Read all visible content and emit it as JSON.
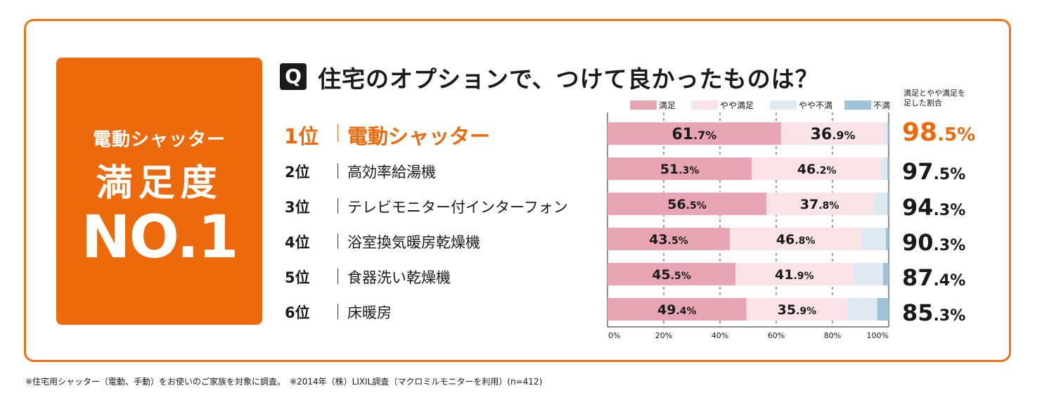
{
  "badge": {
    "subtitle": "電動シャッター",
    "main": "満足度",
    "no": "NO.1"
  },
  "question": {
    "icon": "Q",
    "text": "住宅のオプションで、つけて良かったものは？"
  },
  "legend": [
    {
      "label": "満足",
      "color": "#e8a5b4"
    },
    {
      "label": "やや満足",
      "color": "#f9e3e7"
    },
    {
      "label": "やや不満",
      "color": "#dfe9f2"
    },
    {
      "label": "不満",
      "color": "#9fc3d8"
    }
  ],
  "ratio_header": {
    "line1": "満足とやや満足を",
    "line2": "足した割合"
  },
  "rows": [
    {
      "rank": "1位",
      "item": "電動シャッター",
      "total_int": "98",
      "total_dec": ".5%"
    },
    {
      "rank": "2位",
      "item": "高効率給湯機",
      "total_int": "97",
      "total_dec": ".5%"
    },
    {
      "rank": "3位",
      "item": "テレビモニター付インターフォン",
      "total_int": "94",
      "total_dec": ".3%"
    },
    {
      "rank": "4位",
      "item": "浴室換気暖房乾燥機",
      "total_int": "90",
      "total_dec": ".3%"
    },
    {
      "rank": "5位",
      "item": "食器洗い乾燥機",
      "total_int": "87",
      "total_dec": ".4%"
    },
    {
      "rank": "6位",
      "item": "床暖房",
      "total_int": "85",
      "total_dec": ".3%"
    }
  ],
  "chart_data": {
    "type": "bar",
    "stacked": true,
    "orientation": "horizontal",
    "categories": [
      "電動シャッター",
      "高効率給湯機",
      "テレビモニター付インターフォン",
      "浴室換気暖房乾燥機",
      "食器洗い乾燥機",
      "床暖房"
    ],
    "series": [
      {
        "name": "満足",
        "color": "#e8a5b4",
        "values": [
          61.7,
          51.3,
          56.5,
          43.5,
          45.5,
          49.4
        ]
      },
      {
        "name": "やや満足",
        "color": "#f9e3e7",
        "values": [
          36.9,
          46.2,
          37.8,
          46.8,
          41.9,
          35.9
        ]
      },
      {
        "name": "やや不満",
        "color": "#dfe9f2",
        "values": [
          1.0,
          2.0,
          5.2,
          8.7,
          10.6,
          10.6
        ]
      },
      {
        "name": "不満",
        "color": "#9fc3d8",
        "values": [
          0.4,
          0.5,
          0.5,
          1.0,
          2.0,
          4.1
        ]
      }
    ],
    "label_int": [
      [
        "61",
        "36"
      ],
      [
        "51",
        "46"
      ],
      [
        "56",
        "37"
      ],
      [
        "43",
        "46"
      ],
      [
        "45",
        "41"
      ],
      [
        "49",
        "35"
      ]
    ],
    "label_dec": [
      [
        ".7%",
        ".9%"
      ],
      [
        ".3%",
        ".2%"
      ],
      [
        ".5%",
        ".8%"
      ],
      [
        ".5%",
        ".8%"
      ],
      [
        ".5%",
        ".9%"
      ],
      [
        ".4%",
        ".9%"
      ]
    ],
    "x_ticks": [
      "0%",
      "20%",
      "40%",
      "60%",
      "80%",
      "100%"
    ],
    "xlim": [
      0,
      100
    ],
    "grid": "dashed vertical at 20, 40, 60, 80"
  },
  "footnote": "※住宅用シャッター（電動、手動）をお使いのご家族を対象に調査。　※2014年（株）LIXIL調査（マクロミルモニターを利用）(n=412)"
}
